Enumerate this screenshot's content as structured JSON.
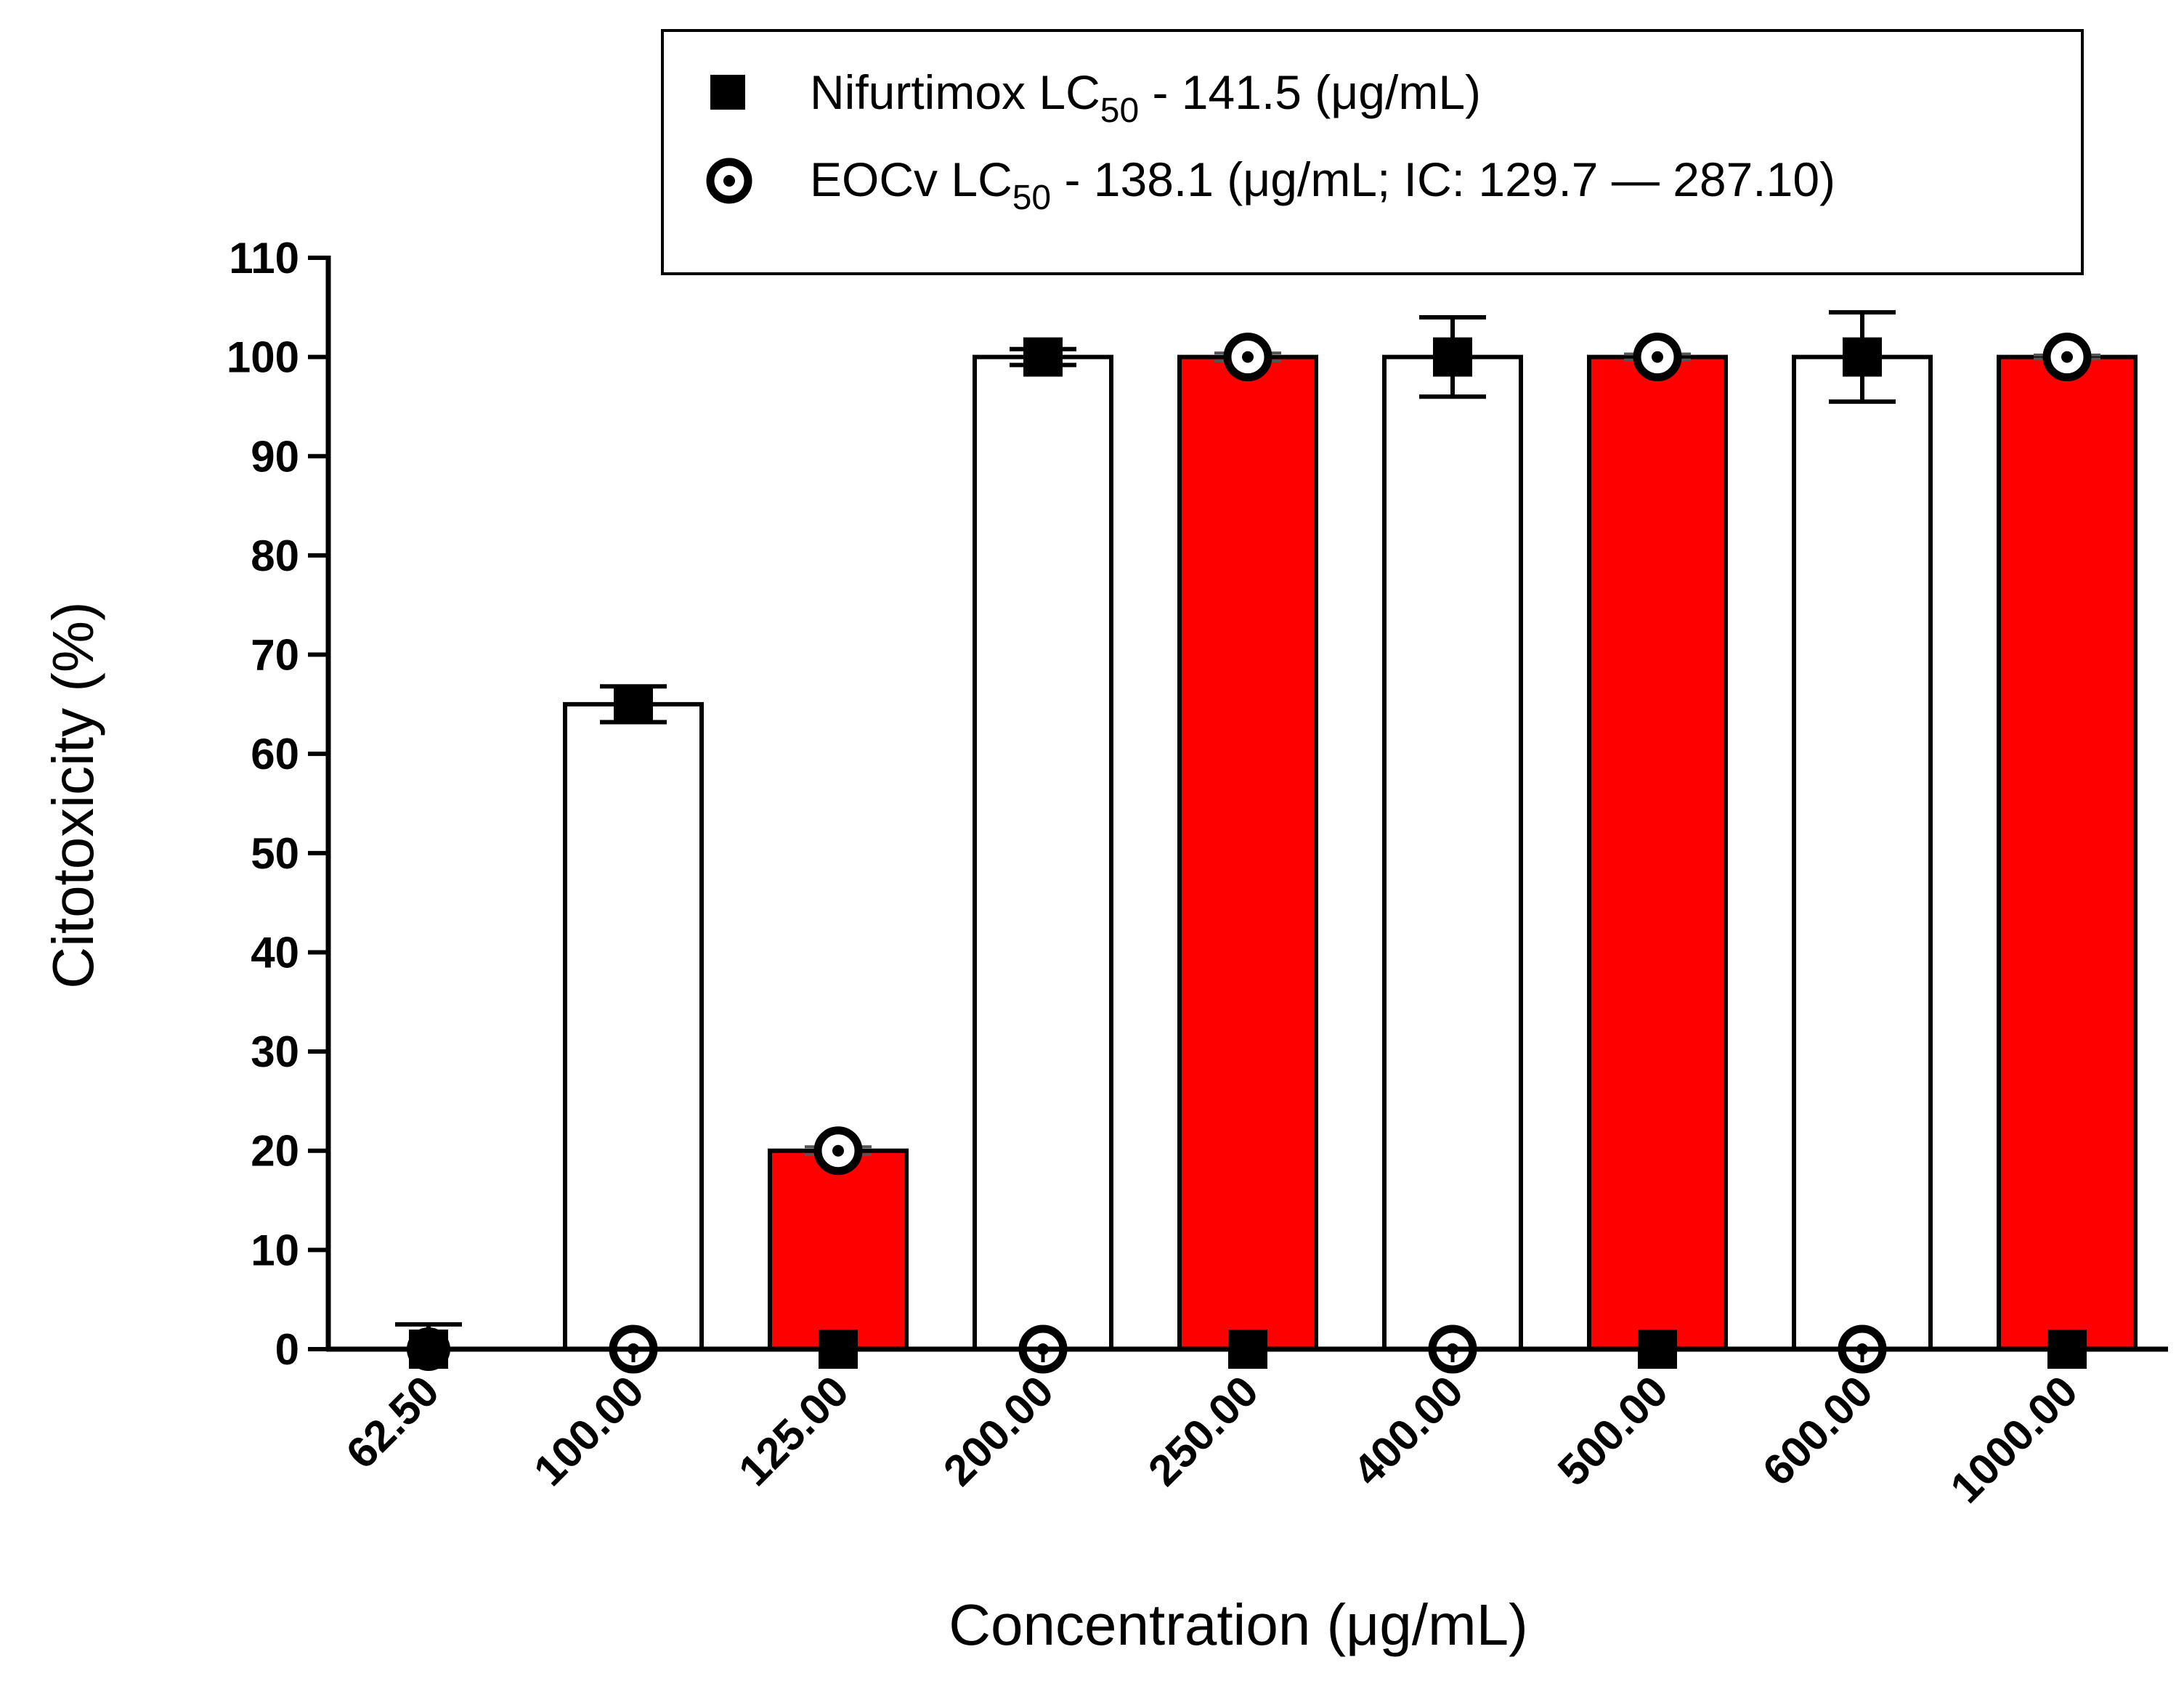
{
  "chart_data": {
    "type": "bar",
    "title": "",
    "xlabel": "Concentration (μg/mL)",
    "ylabel": "Citotoxicity (%)",
    "ylim": [
      0,
      110
    ],
    "yticks": [
      0,
      10,
      20,
      30,
      40,
      50,
      60,
      70,
      80,
      90,
      100,
      110
    ],
    "categories": [
      "62.50",
      "100.00",
      "125.00",
      "200.00",
      "250.00",
      "400.00",
      "500.00",
      "600.00",
      "1000.00"
    ],
    "series": [
      {
        "name": "Nifurtimox",
        "marker": "square",
        "bar_fill": "#ffffff",
        "values": [
          0,
          65,
          0,
          100,
          0,
          100,
          0,
          100,
          0
        ],
        "errors": [
          2.5,
          1.8,
          0,
          0.8,
          0,
          4,
          0,
          4.5,
          0
        ]
      },
      {
        "name": "EOCv",
        "marker": "target-circle",
        "bar_fill": "#ff0000",
        "values": [
          0,
          0,
          20,
          0,
          100,
          0,
          100,
          0,
          100
        ],
        "errors": [
          0,
          0,
          0.4,
          0,
          0.4,
          0,
          0.3,
          0,
          0.2
        ]
      }
    ],
    "legend": {
      "position": "top-right",
      "entries": [
        {
          "marker": "square",
          "main": "Nifurtimox LC",
          "sub": "50",
          "rest": " - 141.5 (μg/mL)"
        },
        {
          "marker": "target-circle",
          "main": "EOCv LC",
          "sub": "50",
          "rest": " - 138.1 (μg/mL; IC: 129.7 — 287.10)"
        }
      ]
    },
    "grid": false
  }
}
